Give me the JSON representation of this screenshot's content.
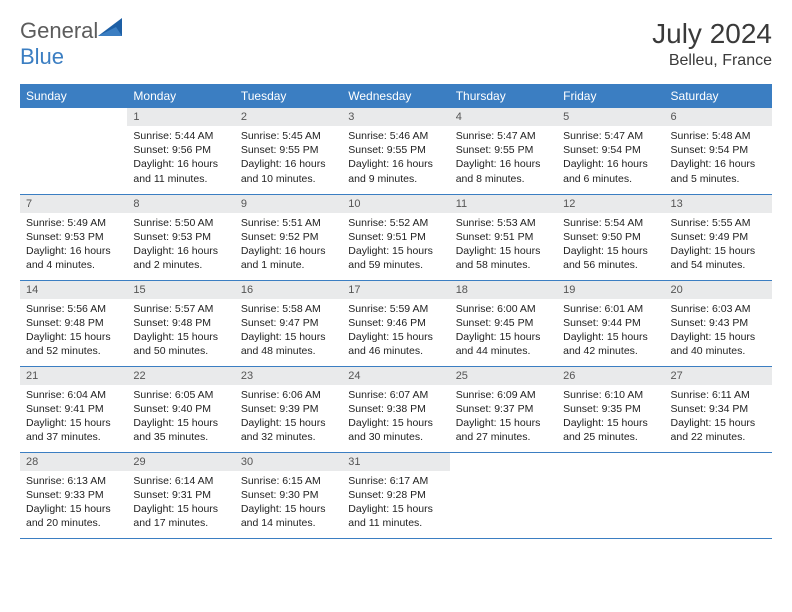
{
  "logo": {
    "text1": "General",
    "text2": "Blue"
  },
  "title": "July 2024",
  "location": "Belleu, France",
  "colors": {
    "header_bg": "#3b7ec2",
    "header_fg": "#ffffff",
    "daynum_bg": "#e9eaeb",
    "cell_border": "#3b7ec2",
    "logo_gray": "#5c5c5c"
  },
  "weekdays": [
    "Sunday",
    "Monday",
    "Tuesday",
    "Wednesday",
    "Thursday",
    "Friday",
    "Saturday"
  ],
  "weeks": [
    [
      {
        "n": "",
        "lines": []
      },
      {
        "n": "1",
        "lines": [
          "Sunrise: 5:44 AM",
          "Sunset: 9:56 PM",
          "Daylight: 16 hours",
          "and 11 minutes."
        ]
      },
      {
        "n": "2",
        "lines": [
          "Sunrise: 5:45 AM",
          "Sunset: 9:55 PM",
          "Daylight: 16 hours",
          "and 10 minutes."
        ]
      },
      {
        "n": "3",
        "lines": [
          "Sunrise: 5:46 AM",
          "Sunset: 9:55 PM",
          "Daylight: 16 hours",
          "and 9 minutes."
        ]
      },
      {
        "n": "4",
        "lines": [
          "Sunrise: 5:47 AM",
          "Sunset: 9:55 PM",
          "Daylight: 16 hours",
          "and 8 minutes."
        ]
      },
      {
        "n": "5",
        "lines": [
          "Sunrise: 5:47 AM",
          "Sunset: 9:54 PM",
          "Daylight: 16 hours",
          "and 6 minutes."
        ]
      },
      {
        "n": "6",
        "lines": [
          "Sunrise: 5:48 AM",
          "Sunset: 9:54 PM",
          "Daylight: 16 hours",
          "and 5 minutes."
        ]
      }
    ],
    [
      {
        "n": "7",
        "lines": [
          "Sunrise: 5:49 AM",
          "Sunset: 9:53 PM",
          "Daylight: 16 hours",
          "and 4 minutes."
        ]
      },
      {
        "n": "8",
        "lines": [
          "Sunrise: 5:50 AM",
          "Sunset: 9:53 PM",
          "Daylight: 16 hours",
          "and 2 minutes."
        ]
      },
      {
        "n": "9",
        "lines": [
          "Sunrise: 5:51 AM",
          "Sunset: 9:52 PM",
          "Daylight: 16 hours",
          "and 1 minute."
        ]
      },
      {
        "n": "10",
        "lines": [
          "Sunrise: 5:52 AM",
          "Sunset: 9:51 PM",
          "Daylight: 15 hours",
          "and 59 minutes."
        ]
      },
      {
        "n": "11",
        "lines": [
          "Sunrise: 5:53 AM",
          "Sunset: 9:51 PM",
          "Daylight: 15 hours",
          "and 58 minutes."
        ]
      },
      {
        "n": "12",
        "lines": [
          "Sunrise: 5:54 AM",
          "Sunset: 9:50 PM",
          "Daylight: 15 hours",
          "and 56 minutes."
        ]
      },
      {
        "n": "13",
        "lines": [
          "Sunrise: 5:55 AM",
          "Sunset: 9:49 PM",
          "Daylight: 15 hours",
          "and 54 minutes."
        ]
      }
    ],
    [
      {
        "n": "14",
        "lines": [
          "Sunrise: 5:56 AM",
          "Sunset: 9:48 PM",
          "Daylight: 15 hours",
          "and 52 minutes."
        ]
      },
      {
        "n": "15",
        "lines": [
          "Sunrise: 5:57 AM",
          "Sunset: 9:48 PM",
          "Daylight: 15 hours",
          "and 50 minutes."
        ]
      },
      {
        "n": "16",
        "lines": [
          "Sunrise: 5:58 AM",
          "Sunset: 9:47 PM",
          "Daylight: 15 hours",
          "and 48 minutes."
        ]
      },
      {
        "n": "17",
        "lines": [
          "Sunrise: 5:59 AM",
          "Sunset: 9:46 PM",
          "Daylight: 15 hours",
          "and 46 minutes."
        ]
      },
      {
        "n": "18",
        "lines": [
          "Sunrise: 6:00 AM",
          "Sunset: 9:45 PM",
          "Daylight: 15 hours",
          "and 44 minutes."
        ]
      },
      {
        "n": "19",
        "lines": [
          "Sunrise: 6:01 AM",
          "Sunset: 9:44 PM",
          "Daylight: 15 hours",
          "and 42 minutes."
        ]
      },
      {
        "n": "20",
        "lines": [
          "Sunrise: 6:03 AM",
          "Sunset: 9:43 PM",
          "Daylight: 15 hours",
          "and 40 minutes."
        ]
      }
    ],
    [
      {
        "n": "21",
        "lines": [
          "Sunrise: 6:04 AM",
          "Sunset: 9:41 PM",
          "Daylight: 15 hours",
          "and 37 minutes."
        ]
      },
      {
        "n": "22",
        "lines": [
          "Sunrise: 6:05 AM",
          "Sunset: 9:40 PM",
          "Daylight: 15 hours",
          "and 35 minutes."
        ]
      },
      {
        "n": "23",
        "lines": [
          "Sunrise: 6:06 AM",
          "Sunset: 9:39 PM",
          "Daylight: 15 hours",
          "and 32 minutes."
        ]
      },
      {
        "n": "24",
        "lines": [
          "Sunrise: 6:07 AM",
          "Sunset: 9:38 PM",
          "Daylight: 15 hours",
          "and 30 minutes."
        ]
      },
      {
        "n": "25",
        "lines": [
          "Sunrise: 6:09 AM",
          "Sunset: 9:37 PM",
          "Daylight: 15 hours",
          "and 27 minutes."
        ]
      },
      {
        "n": "26",
        "lines": [
          "Sunrise: 6:10 AM",
          "Sunset: 9:35 PM",
          "Daylight: 15 hours",
          "and 25 minutes."
        ]
      },
      {
        "n": "27",
        "lines": [
          "Sunrise: 6:11 AM",
          "Sunset: 9:34 PM",
          "Daylight: 15 hours",
          "and 22 minutes."
        ]
      }
    ],
    [
      {
        "n": "28",
        "lines": [
          "Sunrise: 6:13 AM",
          "Sunset: 9:33 PM",
          "Daylight: 15 hours",
          "and 20 minutes."
        ]
      },
      {
        "n": "29",
        "lines": [
          "Sunrise: 6:14 AM",
          "Sunset: 9:31 PM",
          "Daylight: 15 hours",
          "and 17 minutes."
        ]
      },
      {
        "n": "30",
        "lines": [
          "Sunrise: 6:15 AM",
          "Sunset: 9:30 PM",
          "Daylight: 15 hours",
          "and 14 minutes."
        ]
      },
      {
        "n": "31",
        "lines": [
          "Sunrise: 6:17 AM",
          "Sunset: 9:28 PM",
          "Daylight: 15 hours",
          "and 11 minutes."
        ]
      },
      {
        "n": "",
        "lines": []
      },
      {
        "n": "",
        "lines": []
      },
      {
        "n": "",
        "lines": []
      }
    ]
  ]
}
